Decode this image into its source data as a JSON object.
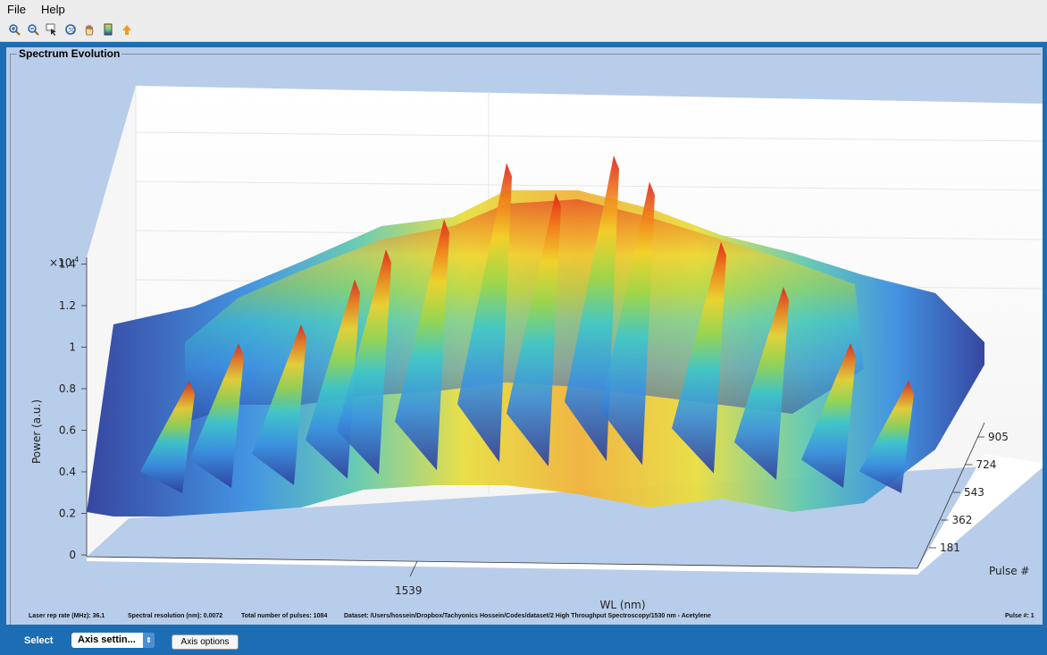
{
  "menu": {
    "file": "File",
    "help": "Help"
  },
  "toolbar": {
    "items": [
      "zoom-in-icon",
      "zoom-out-icon",
      "data-cursor-icon",
      "rotate-3d-icon",
      "pan-hand-icon",
      "colorbar-icon",
      "arrow-up-icon"
    ]
  },
  "panel": {
    "title": "Spectrum Evolution"
  },
  "plot": {
    "exponent_label": "×10",
    "exponent_sup": "-4",
    "z_ticks": [
      "0",
      "0.2",
      "0.4",
      "0.6",
      "0.8",
      "1",
      "1.2",
      "1.4"
    ],
    "y_ticks": [
      "181",
      "362",
      "543",
      "724",
      "905"
    ],
    "x_tick": "1539",
    "xlabel": "WL (nm)",
    "ylabel": "Pulse #",
    "zlabel": "Power (a.u.)"
  },
  "info": {
    "rep_rate": "Laser rep rate (MHz): 36.1",
    "resolution": "Spectral resolution (nm): 0.0072",
    "total_pulses": "Total number of pulses: 1084",
    "dataset": "Dataset:  /Users/hossein/Dropbox/Tachyonics Hossein/Codes/dataset/2 High Throughput Spectroscopy/1530 nm - Acetylene",
    "pulse": "Pulse #: 1"
  },
  "controls": {
    "select_label": "Select",
    "dropdown_value": "Axis settin...",
    "axis_options_label": "Axis options"
  },
  "colors": {
    "window_bg": "#1c6db4",
    "panel_bg": "#b8cde9",
    "surface_low": "#2d3d9c",
    "surface_high": "#e8231a"
  }
}
